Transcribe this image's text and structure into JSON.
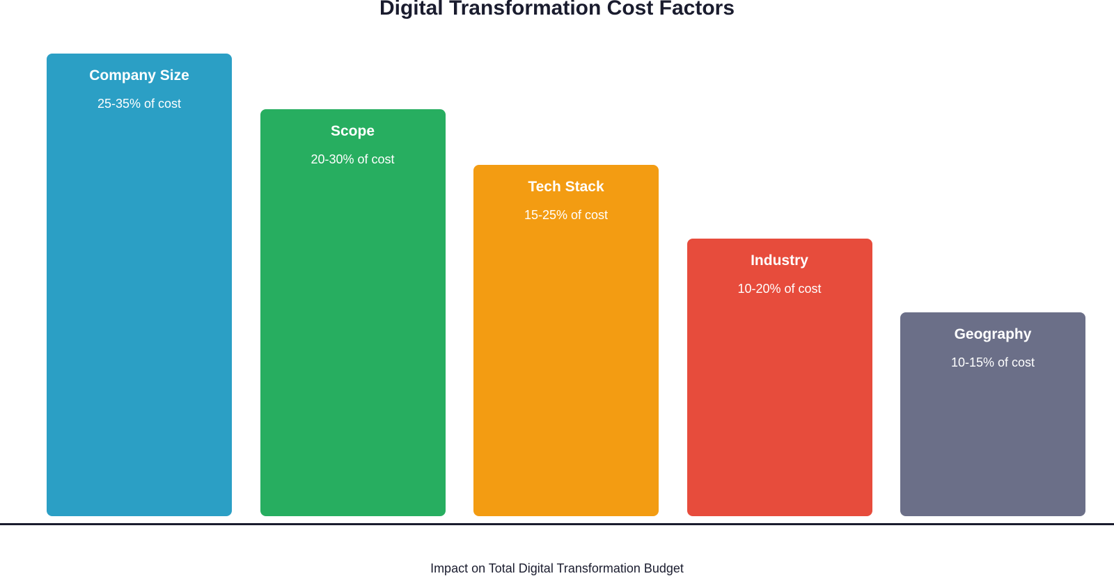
{
  "chart_data": {
    "type": "bar",
    "title": "Digital Transformation Cost Factors",
    "xlabel": "Impact on Total Digital Transformation Budget",
    "ylabel": "",
    "grid": false,
    "categories": [
      "Company Size",
      "Scope",
      "Tech Stack",
      "Industry",
      "Geography"
    ],
    "labels": [
      "25-35% of cost",
      "20-30% of cost",
      "15-25% of cost",
      "10-20% of cost",
      "10-15% of cost"
    ],
    "values": [
      100,
      88,
      76,
      60,
      44
    ],
    "ylim": [
      0,
      100
    ],
    "colors": [
      "#2b9fc5",
      "#27ae60",
      "#f39c12",
      "#e74c3c",
      "#6b6f88"
    ]
  }
}
